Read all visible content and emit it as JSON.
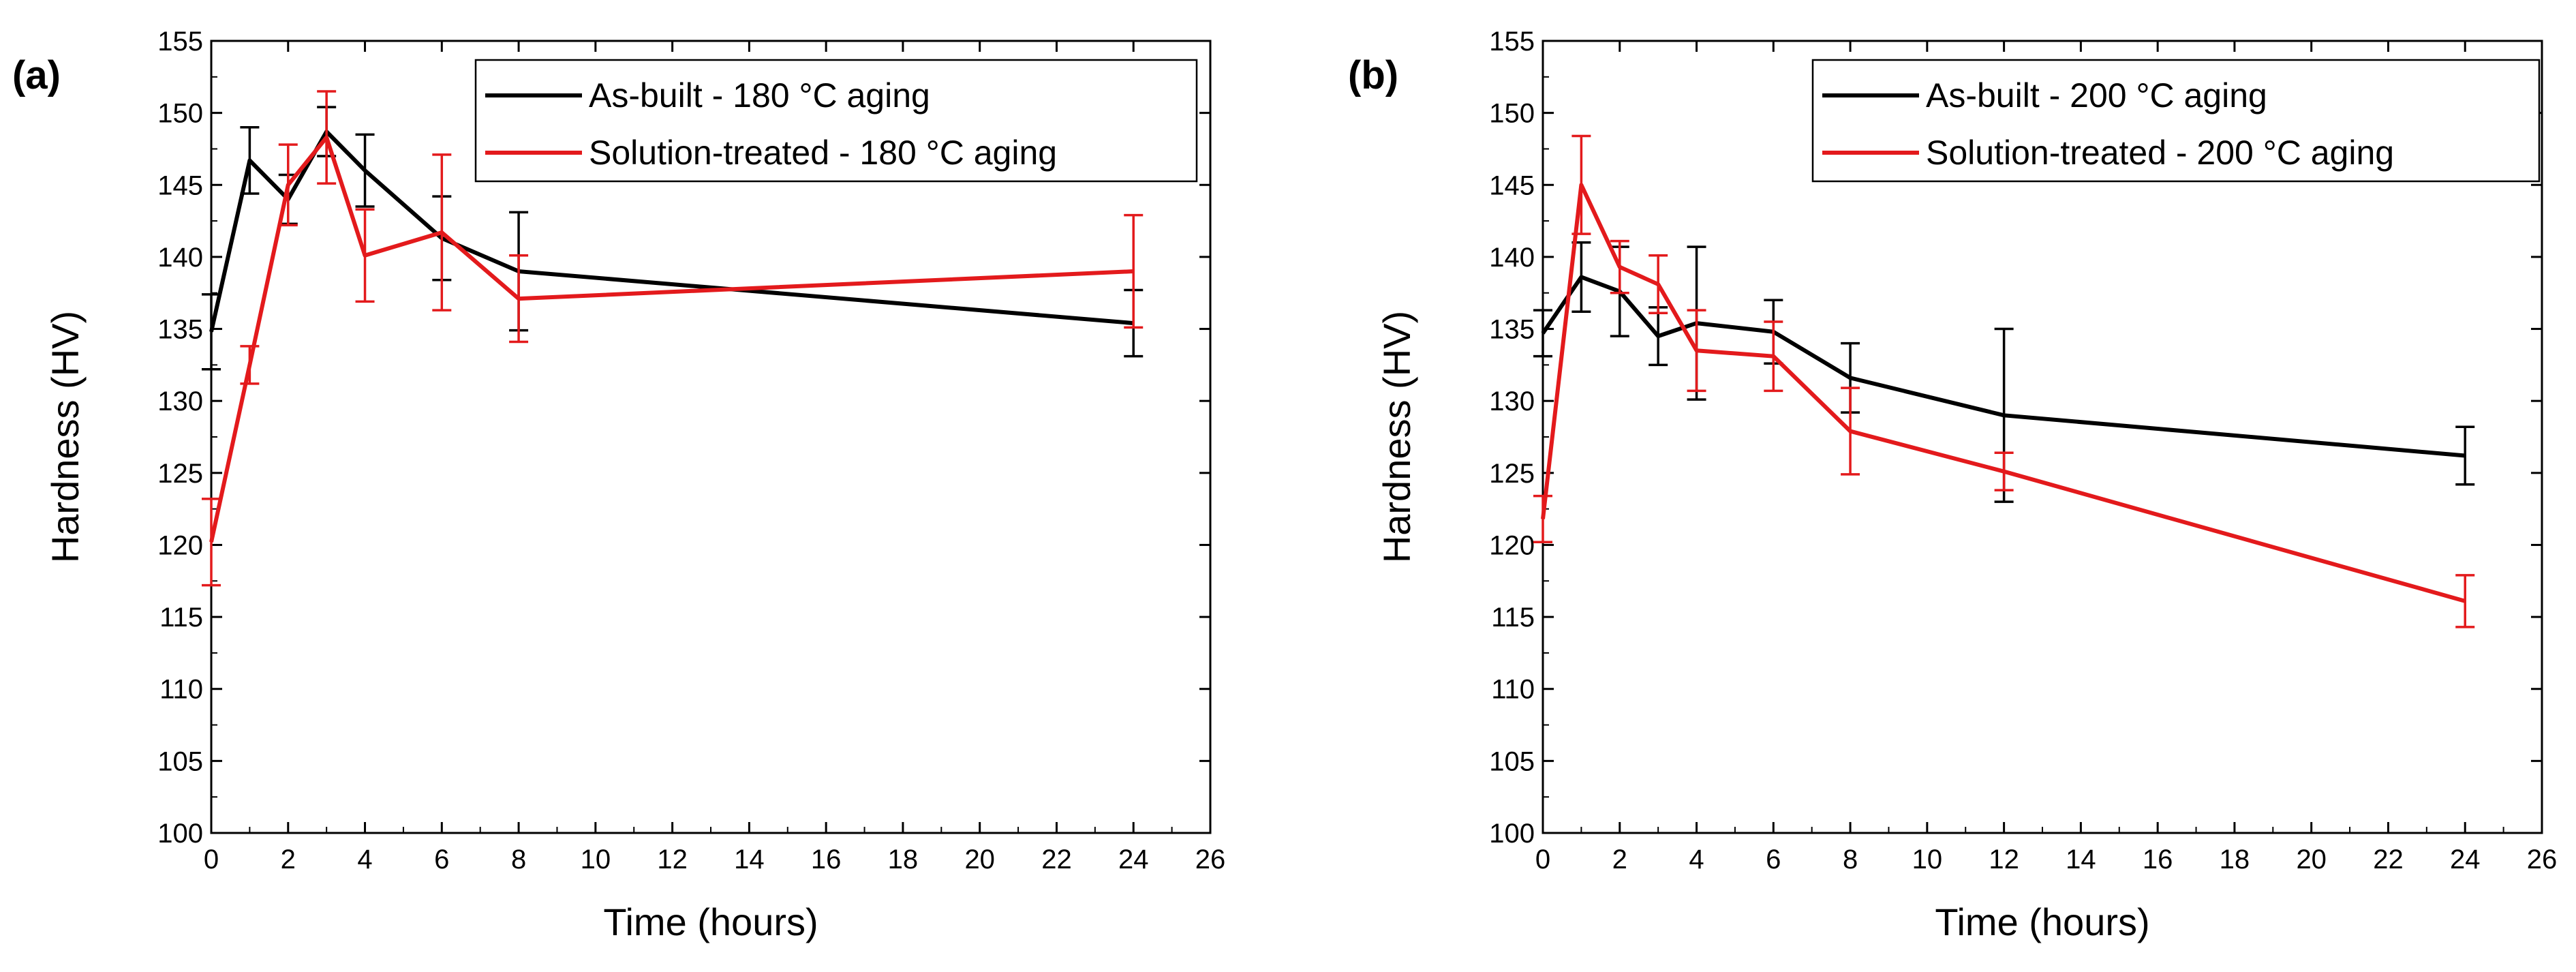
{
  "chart_data": [
    {
      "type": "line",
      "panel_label": "(a)",
      "xlabel": "Time (hours)",
      "ylabel": "Hardness (HV)",
      "xlim": [
        0,
        26
      ],
      "ylim": [
        100,
        155
      ],
      "xticks": [
        0,
        2,
        4,
        6,
        8,
        10,
        12,
        14,
        16,
        18,
        20,
        22,
        24,
        26
      ],
      "yticks": [
        100,
        105,
        110,
        115,
        120,
        125,
        130,
        135,
        140,
        145,
        150,
        155
      ],
      "legend_position": "top-right",
      "series": [
        {
          "name": "As-built - 180 °C aging",
          "color": "#000000",
          "x": [
            0,
            1,
            2,
            3,
            4,
            6,
            8,
            24
          ],
          "y": [
            134.8,
            146.7,
            144.0,
            148.7,
            146.0,
            141.3,
            139.0,
            135.4
          ],
          "err": [
            2.6,
            2.3,
            1.7,
            1.7,
            2.5,
            2.9,
            4.1,
            2.3
          ]
        },
        {
          "name": "Solution-treated - 180 °C aging",
          "color": "#e31a1c",
          "x": [
            0,
            1,
            2,
            3,
            4,
            6,
            8,
            24
          ],
          "y": [
            120.2,
            132.5,
            145.0,
            148.3,
            140.1,
            141.7,
            137.1,
            139.0
          ],
          "err": [
            3.0,
            1.3,
            2.8,
            3.2,
            3.2,
            5.4,
            3.0,
            3.9
          ]
        }
      ]
    },
    {
      "type": "line",
      "panel_label": "(b)",
      "xlabel": "Time (hours)",
      "ylabel": "Hardness (HV)",
      "xlim": [
        0,
        26
      ],
      "ylim": [
        100,
        155
      ],
      "xticks": [
        0,
        2,
        4,
        6,
        8,
        10,
        12,
        14,
        16,
        18,
        20,
        22,
        24,
        26
      ],
      "yticks": [
        100,
        105,
        110,
        115,
        120,
        125,
        130,
        135,
        140,
        145,
        150,
        155
      ],
      "legend_position": "top-right",
      "series": [
        {
          "name": "As-built - 200 °C aging",
          "color": "#000000",
          "x": [
            0,
            1,
            2,
            3,
            4,
            6,
            8,
            12,
            24
          ],
          "y": [
            134.7,
            138.6,
            137.6,
            134.5,
            135.4,
            134.8,
            131.6,
            129.0,
            126.2
          ],
          "err": [
            1.6,
            2.4,
            3.1,
            2.0,
            5.3,
            2.2,
            2.4,
            6.0,
            2.0
          ]
        },
        {
          "name": "Solution-treated - 200 °C aging",
          "color": "#e31a1c",
          "x": [
            0,
            1,
            2,
            3,
            4,
            6,
            8,
            12,
            24
          ],
          "y": [
            121.8,
            145.0,
            139.3,
            138.1,
            133.5,
            133.1,
            127.9,
            125.1,
            116.1
          ],
          "err": [
            1.6,
            3.4,
            1.8,
            2.0,
            2.8,
            2.4,
            3.0,
            1.3,
            1.8
          ]
        }
      ]
    }
  ]
}
